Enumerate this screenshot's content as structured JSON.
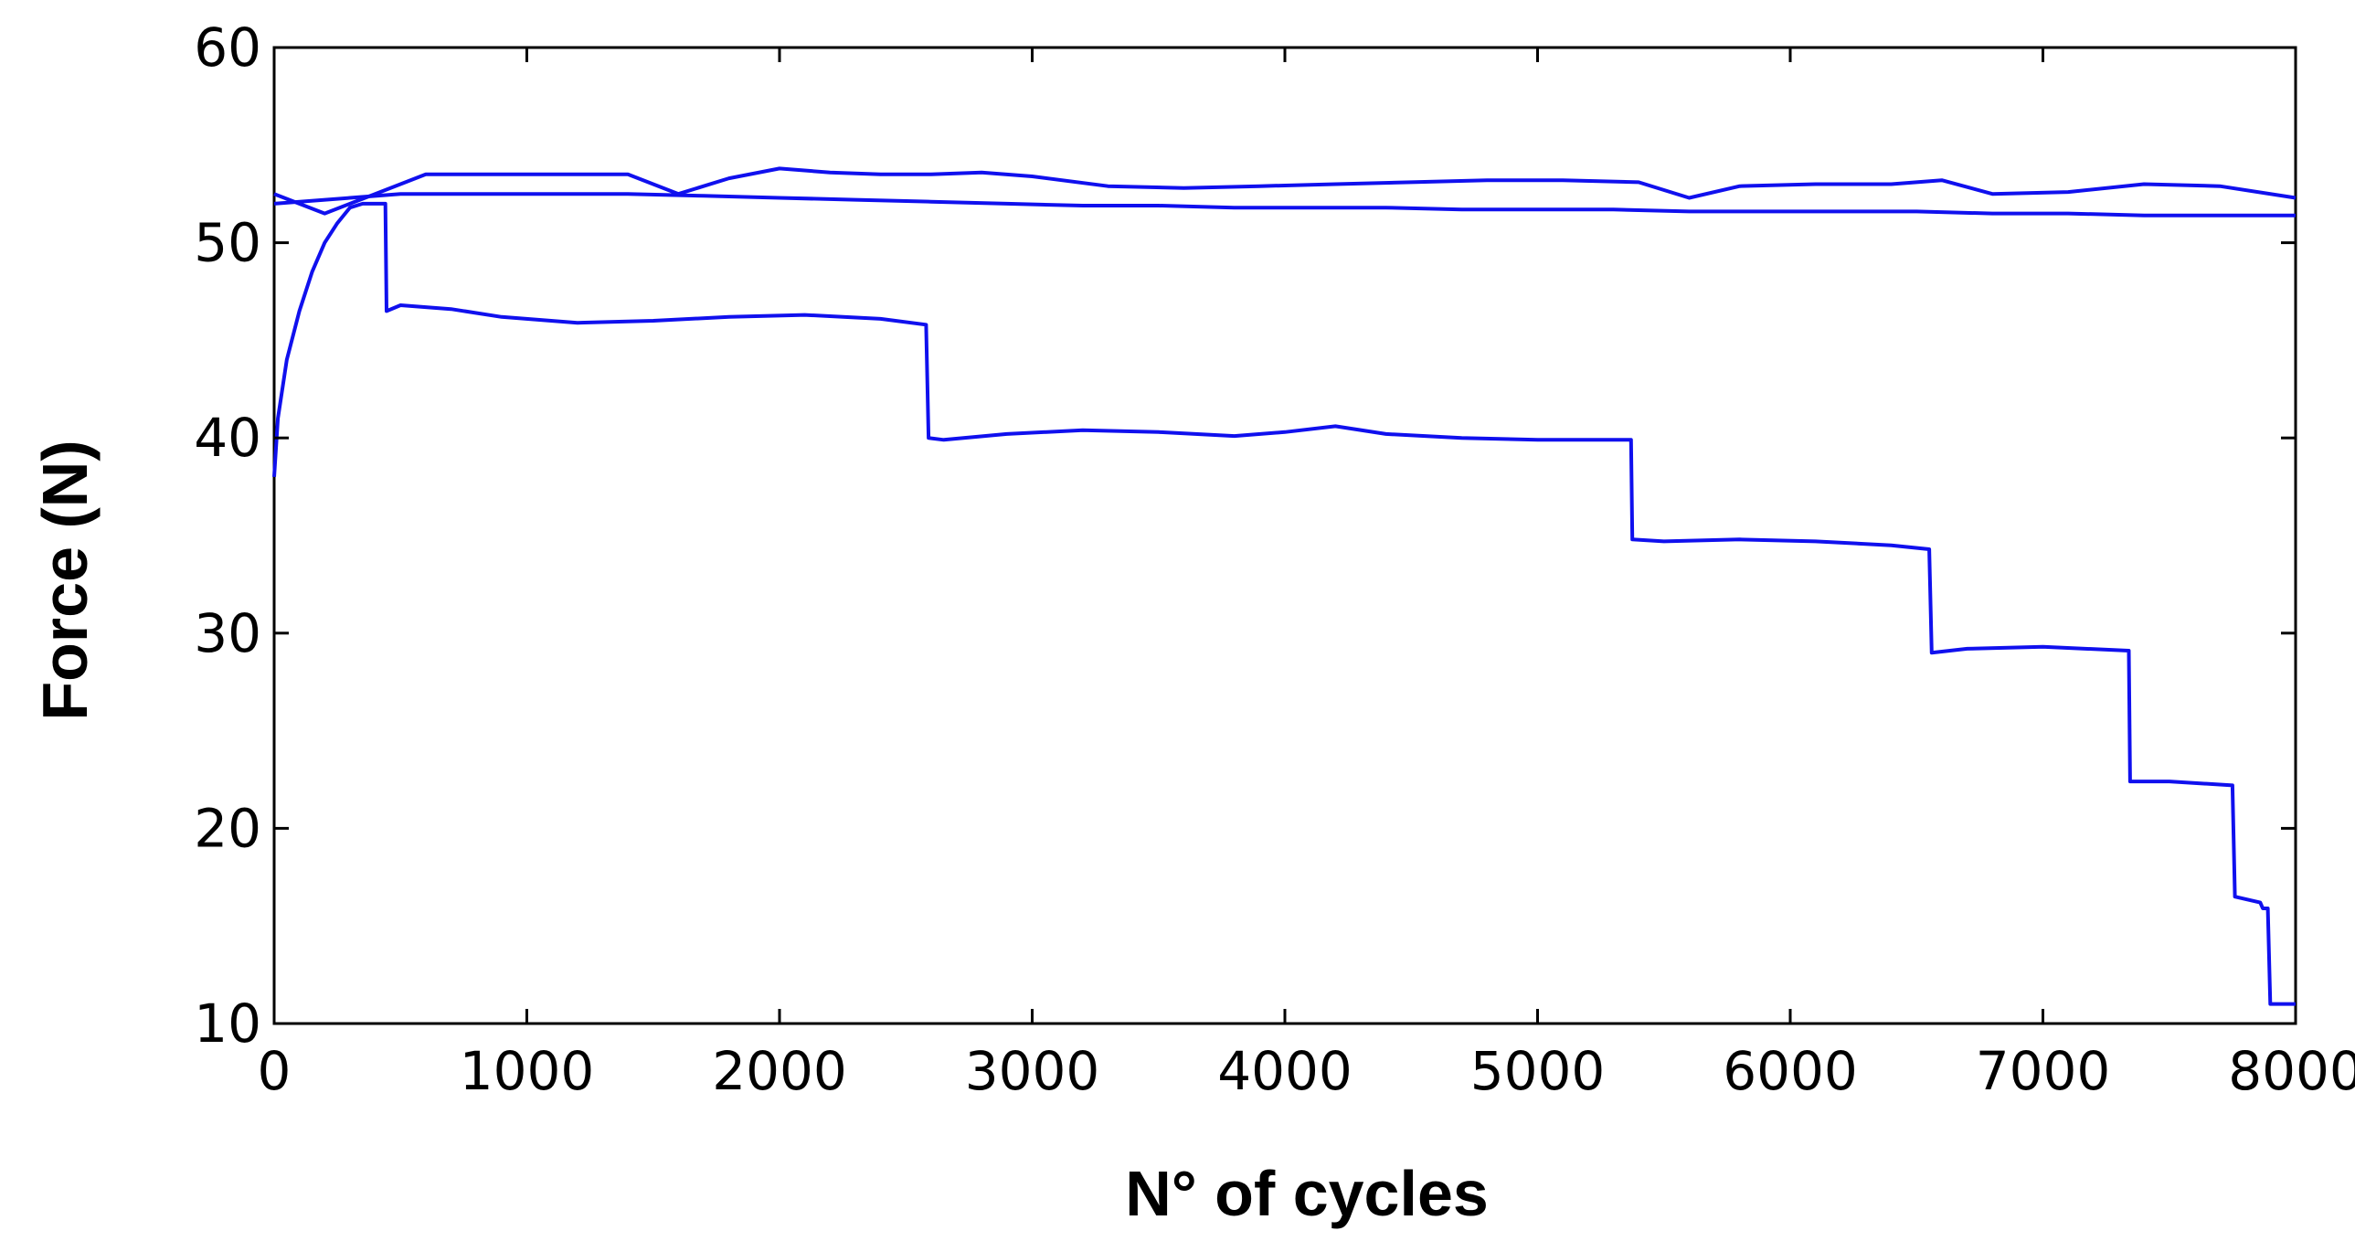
{
  "chart_data": {
    "type": "line",
    "title": "",
    "xlabel": "N° of cycles",
    "ylabel": "Force (N)",
    "xlim": [
      0,
      8000
    ],
    "ylim": [
      10,
      60
    ],
    "xticks": [
      0,
      1000,
      2000,
      3000,
      4000,
      5000,
      6000,
      7000,
      8000
    ],
    "yticks": [
      10,
      20,
      30,
      40,
      50,
      60
    ],
    "xtick_labels": [
      "0",
      "1000",
      "2000",
      "3000",
      "4000",
      "5000",
      "6000",
      "7000",
      "8000"
    ],
    "ytick_labels": [
      "10",
      "20",
      "30",
      "40",
      "50",
      "60"
    ],
    "grid": false,
    "legend": "none",
    "line_color": "#1010ee",
    "series": [
      {
        "x": [
          0,
          300,
          500,
          800,
          1100,
          1400,
          1700,
          2000,
          2300,
          2600,
          2900,
          3200,
          3500,
          3800,
          4100,
          4400,
          4700,
          5000,
          5300,
          5600,
          5900,
          6200,
          6500,
          6800,
          7100,
          7400,
          7700,
          8000
        ],
        "y": [
          52.0,
          52.3,
          52.5,
          52.5,
          52.5,
          52.5,
          52.4,
          52.3,
          52.2,
          52.1,
          52.0,
          51.9,
          51.9,
          51.8,
          51.8,
          51.8,
          51.7,
          51.7,
          51.7,
          51.6,
          51.6,
          51.6,
          51.6,
          51.5,
          51.5,
          51.4,
          51.4,
          51.4
        ]
      },
      {
        "x": [
          0,
          200,
          400,
          600,
          800,
          1100,
          1400,
          1600,
          1800,
          2000,
          2200,
          2400,
          2600,
          2800,
          3000,
          3300,
          3600,
          3900,
          4200,
          4500,
          4800,
          5100,
          5400,
          5600,
          5800,
          6100,
          6400,
          6600,
          6800,
          7100,
          7400,
          7700,
          8000
        ],
        "y": [
          52.5,
          51.5,
          52.5,
          53.5,
          53.5,
          53.5,
          53.5,
          52.5,
          53.3,
          53.8,
          53.6,
          53.5,
          53.5,
          53.6,
          53.4,
          52.9,
          52.8,
          52.9,
          53.0,
          53.1,
          53.2,
          53.2,
          53.1,
          52.3,
          52.9,
          53.0,
          53.0,
          53.2,
          52.5,
          52.6,
          53.0,
          52.9,
          52.3
        ]
      },
      {
        "x": [
          0,
          15,
          50,
          100,
          150,
          200,
          250,
          300,
          350,
          440,
          445,
          500,
          700,
          900,
          1200,
          1500,
          1800,
          2100,
          2400,
          2580,
          2590,
          2650,
          2900,
          3200,
          3500,
          3800,
          4000,
          4200,
          4400,
          4700,
          5000,
          5370,
          5375,
          5500,
          5800,
          6100,
          6400,
          6550,
          6560,
          6700,
          7000,
          7340,
          7345,
          7500,
          7750,
          7760,
          7860,
          7870,
          7890,
          7900,
          8000
        ],
        "y": [
          38.0,
          41.0,
          44.0,
          46.5,
          48.5,
          50.0,
          51.0,
          51.8,
          52.0,
          52.0,
          46.5,
          46.8,
          46.6,
          46.2,
          45.9,
          46.0,
          46.2,
          46.3,
          46.1,
          45.8,
          40.0,
          39.9,
          40.2,
          40.4,
          40.3,
          40.1,
          40.3,
          40.6,
          40.2,
          40.0,
          39.9,
          39.9,
          34.8,
          34.7,
          34.8,
          34.7,
          34.5,
          34.3,
          29.0,
          29.2,
          29.3,
          29.1,
          22.4,
          22.4,
          22.2,
          16.5,
          16.2,
          15.9,
          15.9,
          11.0,
          11.0
        ]
      }
    ]
  }
}
